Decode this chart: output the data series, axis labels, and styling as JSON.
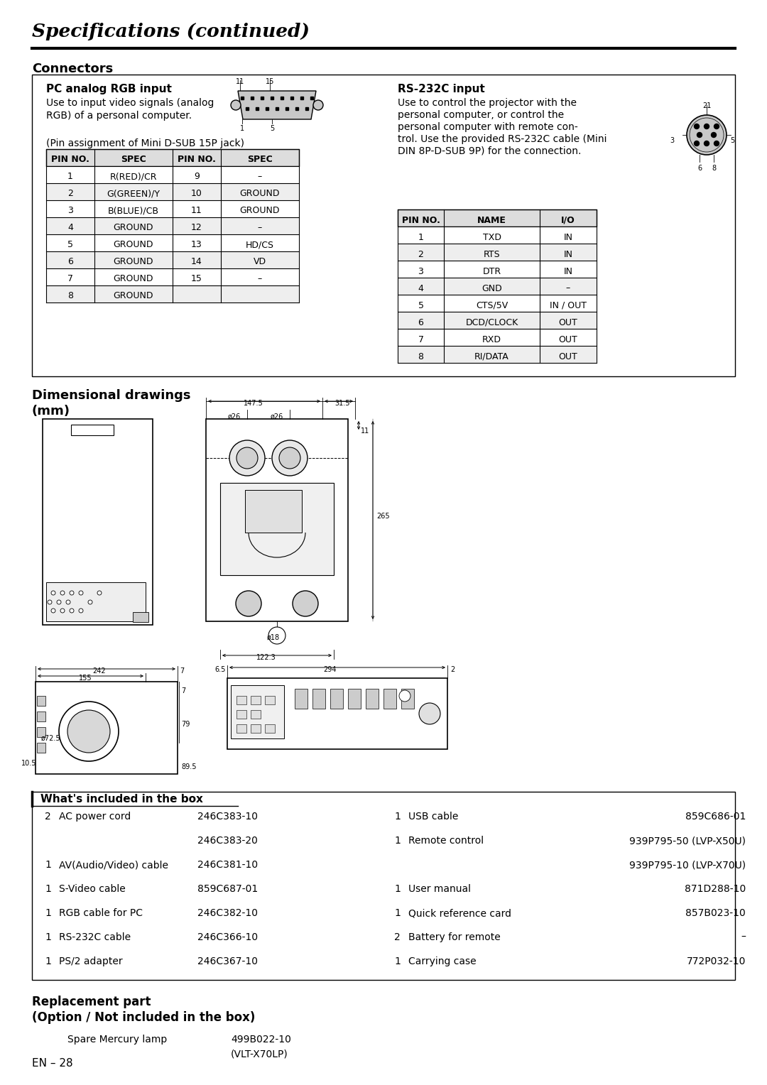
{
  "title": "Specifications (continued)",
  "bg_color": "#ffffff",
  "section1": "Connectors",
  "pc_rgb_title": "PC analog RGB input",
  "pc_rgb_desc1": "Use to input video signals (analog",
  "pc_rgb_desc2": "RGB) of a personal computer.",
  "pc_rgb_note": "(Pin assignment of Mini D-SUB 15P jack)",
  "pc_table_headers": [
    "PIN NO.",
    "SPEC",
    "PIN NO.",
    "SPEC"
  ],
  "pc_table_rows": [
    [
      "1",
      "R(RED)/CR",
      "9",
      "–"
    ],
    [
      "2",
      "G(GREEN)/Y",
      "10",
      "GROUND"
    ],
    [
      "3",
      "B(BLUE)/CB",
      "11",
      "GROUND"
    ],
    [
      "4",
      "GROUND",
      "12",
      "–"
    ],
    [
      "5",
      "GROUND",
      "13",
      "HD/CS"
    ],
    [
      "6",
      "GROUND",
      "14",
      "VD"
    ],
    [
      "7",
      "GROUND",
      "15",
      "–"
    ],
    [
      "8",
      "GROUND",
      "",
      ""
    ]
  ],
  "rs232_title": "RS-232C input",
  "rs232_desc_lines": [
    "Use to control the projector with the",
    "personal computer, or control the",
    "personal computer with remote con-",
    "trol. Use the provided RS-232C cable (Mini",
    "DIN 8P-D-SUB 9P) for the connection."
  ],
  "rs232_table_headers": [
    "PIN NO.",
    "NAME",
    "I/O"
  ],
  "rs232_table_rows": [
    [
      "1",
      "TXD",
      "IN"
    ],
    [
      "2",
      "RTS",
      "IN"
    ],
    [
      "3",
      "DTR",
      "IN"
    ],
    [
      "4",
      "GND",
      "–"
    ],
    [
      "5",
      "CTS/5V",
      "IN / OUT"
    ],
    [
      "6",
      "DCD/CLOCK",
      "OUT"
    ],
    [
      "7",
      "RXD",
      "OUT"
    ],
    [
      "8",
      "RI/DATA",
      "OUT"
    ]
  ],
  "whats_included_title": "What's included in the box",
  "box_items_left": [
    [
      "2",
      "AC power cord",
      "246C383-10"
    ],
    [
      "",
      "",
      "246C383-20"
    ],
    [
      "1",
      "AV(Audio/Video) cable",
      "246C381-10"
    ],
    [
      "1",
      "S-Video cable",
      "859C687-01"
    ],
    [
      "1",
      "RGB cable for PC",
      "246C382-10"
    ],
    [
      "1",
      "RS-232C cable",
      "246C366-10"
    ],
    [
      "1",
      "PS/2 adapter",
      "246C367-10"
    ]
  ],
  "box_items_right": [
    [
      "1",
      "USB cable",
      "859C686-01"
    ],
    [
      "1",
      "Remote control",
      "939P795-50 (LVP-X50U)"
    ],
    [
      "",
      "",
      "939P795-10 (LVP-X70U)"
    ],
    [
      "1",
      "User manual",
      "871D288-10"
    ],
    [
      "1",
      "Quick reference card",
      "857B023-10"
    ],
    [
      "2",
      "Battery for remote",
      "–"
    ],
    [
      "1",
      "Carrying case",
      "772P032-10"
    ]
  ],
  "replacement_item": "Spare Mercury lamp",
  "replacement_code1": "499B022-10",
  "replacement_code2": "(VLT-X70LP)",
  "footer": "EN – 28"
}
